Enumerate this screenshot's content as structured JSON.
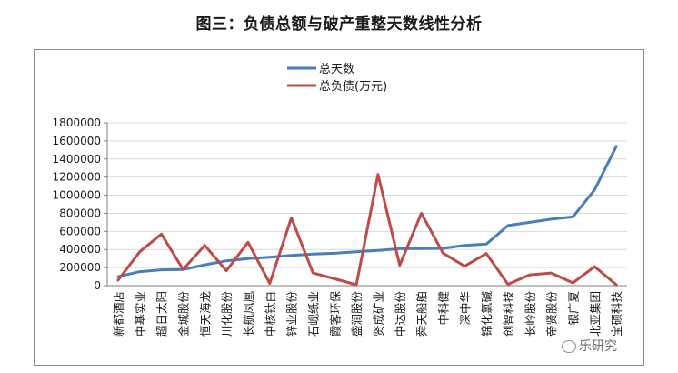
{
  "title": "图三：负债总额与破产重整天数线性分析",
  "watermark": "乐研究",
  "chart_data": {
    "type": "line",
    "categories": [
      "新都酒店",
      "中基实业",
      "超日太阳",
      "金城股份",
      "恒天海龙",
      "川化股份",
      "长航凤凰",
      "中核钛白",
      "锌业股份",
      "石岘纸业",
      "霞客环保",
      "盛润股份",
      "贤成矿业",
      "中达股份",
      "舜天船舶",
      "中科健",
      "深中华",
      "锦化氯碱",
      "创智科技",
      "长岭股份",
      "帝贤股份",
      "银广夏",
      "北亚集团",
      "宝硕科技"
    ],
    "series": [
      {
        "name": "总天数",
        "color": "#4a7ebb",
        "values": [
          100000,
          155000,
          175000,
          178000,
          230000,
          275000,
          300000,
          315000,
          335000,
          350000,
          358000,
          375000,
          390000,
          408000,
          410000,
          412000,
          445000,
          460000,
          665000,
          700000,
          735000,
          760000,
          1060000,
          1540000
        ]
      },
      {
        "name": "总负债(万元)",
        "color": "#be4b48",
        "values": [
          60000,
          375000,
          570000,
          180000,
          445000,
          165000,
          480000,
          25000,
          750000,
          140000,
          75000,
          10000,
          1230000,
          225000,
          800000,
          360000,
          215000,
          355000,
          15000,
          120000,
          140000,
          30000,
          210000,
          10000
        ]
      }
    ],
    "ylim": [
      0,
      1800000
    ],
    "yticks": [
      "0",
      "200000",
      "400000",
      "600000",
      "800000",
      "1000000",
      "1200000",
      "1400000",
      "1600000",
      "1800000"
    ],
    "ytick_values": [
      0,
      200000,
      400000,
      600000,
      800000,
      1000000,
      1200000,
      1400000,
      1600000,
      1800000
    ],
    "legend_position": "top-center",
    "grid": true
  }
}
